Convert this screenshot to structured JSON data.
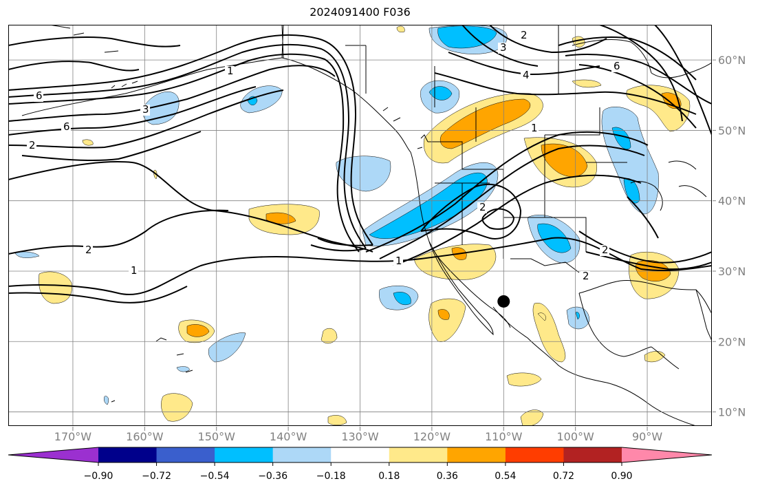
{
  "title": "2024091400 F036",
  "map": {
    "lon_range": [
      -179,
      -81
    ],
    "lat_range": [
      8,
      65
    ],
    "lon_ticks": [
      {
        "lon": -170,
        "label": "170°W"
      },
      {
        "lon": -160,
        "label": "160°W"
      },
      {
        "lon": -150,
        "label": "150°W"
      },
      {
        "lon": -140,
        "label": "140°W"
      },
      {
        "lon": -130,
        "label": "130°W"
      },
      {
        "lon": -120,
        "label": "120°W"
      },
      {
        "lon": -110,
        "label": "110°W"
      },
      {
        "lon": -100,
        "label": "100°W"
      },
      {
        "lon": -90,
        "label": "90°W"
      }
    ],
    "lat_ticks": [
      {
        "lat": 60,
        "label": "60°N"
      },
      {
        "lat": 50,
        "label": "50°N"
      },
      {
        "lat": 40,
        "label": "40°N"
      },
      {
        "lat": 30,
        "label": "30°N"
      },
      {
        "lat": 20,
        "label": "20°N"
      },
      {
        "lat": 10,
        "label": "10°N"
      }
    ],
    "contour_labels": [
      "6",
      "3",
      "6",
      "1",
      "2",
      "2",
      "1",
      "1",
      "2",
      "2",
      "1",
      "4",
      "6",
      "2",
      "3",
      "2"
    ],
    "marker": {
      "lon": -110,
      "lat": 25.7
    }
  },
  "colorbar": {
    "levels": [
      "−0.90",
      "−0.72",
      "−0.54",
      "−0.36",
      "−0.18",
      "0.18",
      "0.36",
      "0.54",
      "0.72",
      "0.90"
    ],
    "colors": {
      "below": "#9b30d0",
      "bins": [
        "#00008b",
        "#3a5fcd",
        "#00bfff",
        "#add8f7",
        "#ffffff",
        "#ffe98a",
        "#ffa500",
        "#ff3d00",
        "#b22222"
      ],
      "above": "#ff88aa"
    }
  },
  "fill_colors": {
    "light_blue": "#add8f7",
    "blue": "#00bfff",
    "yellow": "#ffe98a",
    "orange": "#ffa500"
  }
}
